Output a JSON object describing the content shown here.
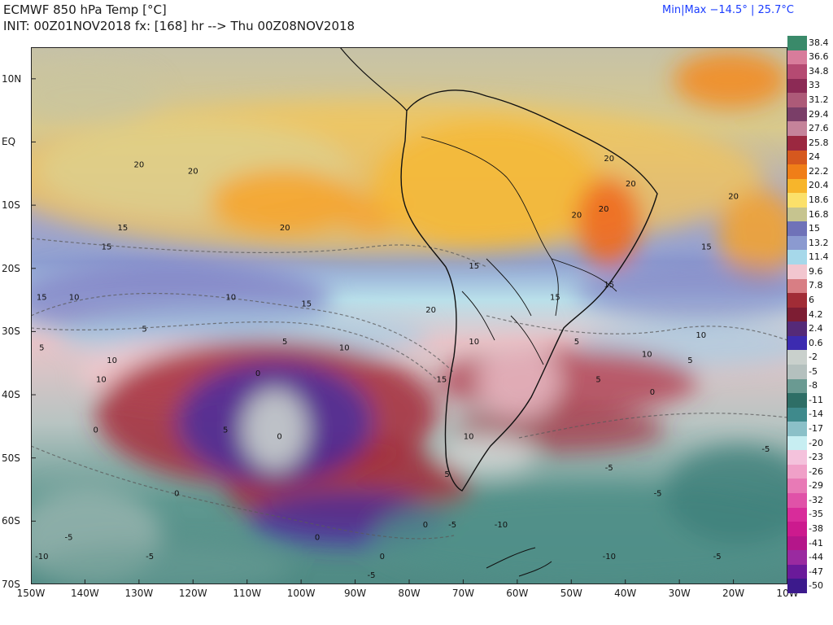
{
  "header": {
    "line1": "ECMWF 850 hPa Temp [°C]",
    "line2": "INIT: 00Z01NOV2018 fx: [168] hr --> Thu 00Z08NOV2018",
    "minmax": "Min|Max −14.5° | 25.7°C"
  },
  "map": {
    "lat_labels": [
      "10N",
      "EQ",
      "10S",
      "20S",
      "30S",
      "40S",
      "50S",
      "60S",
      "70S"
    ],
    "lon_labels": [
      "150W",
      "140W",
      "130W",
      "120W",
      "110W",
      "100W",
      "90W",
      "80W",
      "70W",
      "60W",
      "50W",
      "40W",
      "30W",
      "20W",
      "10W"
    ],
    "contour_labels": [
      {
        "text": "20",
        "lon": -130,
        "lat": -4
      },
      {
        "text": "20",
        "lon": -120,
        "lat": -5
      },
      {
        "text": "20",
        "lon": -103,
        "lat": -14
      },
      {
        "text": "20",
        "lon": -49,
        "lat": -12
      },
      {
        "text": "20",
        "lon": -43,
        "lat": -3
      },
      {
        "text": "20",
        "lon": -39,
        "lat": -7
      },
      {
        "text": "20",
        "lon": -44,
        "lat": -11
      },
      {
        "text": "20",
        "lon": -20,
        "lat": -9
      },
      {
        "text": "20",
        "lon": -76,
        "lat": -27
      },
      {
        "text": "15",
        "lon": -133,
        "lat": -14
      },
      {
        "text": "15",
        "lon": -136,
        "lat": -17
      },
      {
        "text": "15",
        "lon": -148,
        "lat": -25
      },
      {
        "text": "15",
        "lon": -99,
        "lat": -26
      },
      {
        "text": "15",
        "lon": -68,
        "lat": -20
      },
      {
        "text": "15",
        "lon": -53,
        "lat": -25
      },
      {
        "text": "15",
        "lon": -43,
        "lat": -23
      },
      {
        "text": "15",
        "lon": -25,
        "lat": -17
      },
      {
        "text": "15",
        "lon": -74,
        "lat": -38
      },
      {
        "text": "10",
        "lon": -142,
        "lat": -25
      },
      {
        "text": "10",
        "lon": -113,
        "lat": -25
      },
      {
        "text": "10",
        "lon": -135,
        "lat": -35
      },
      {
        "text": "10",
        "lon": -137,
        "lat": -38
      },
      {
        "text": "10",
        "lon": -92,
        "lat": -33
      },
      {
        "text": "10",
        "lon": -68,
        "lat": -32
      },
      {
        "text": "10",
        "lon": -36,
        "lat": -34
      },
      {
        "text": "10",
        "lon": -26,
        "lat": -31
      },
      {
        "text": "10",
        "lon": -69,
        "lat": -47
      },
      {
        "text": "5",
        "lon": -129,
        "lat": -30
      },
      {
        "text": "5",
        "lon": -148,
        "lat": -33
      },
      {
        "text": "5",
        "lon": -103,
        "lat": -32
      },
      {
        "text": "5",
        "lon": -114,
        "lat": -46
      },
      {
        "text": "5",
        "lon": -73,
        "lat": -53
      },
      {
        "text": "5",
        "lon": -49,
        "lat": -32
      },
      {
        "text": "5",
        "lon": -45,
        "lat": -38
      },
      {
        "text": "5",
        "lon": -28,
        "lat": -35
      },
      {
        "text": "0",
        "lon": -108,
        "lat": -37
      },
      {
        "text": "0",
        "lon": -138,
        "lat": -46
      },
      {
        "text": "0",
        "lon": -123,
        "lat": -56
      },
      {
        "text": "0",
        "lon": -104,
        "lat": -47
      },
      {
        "text": "0",
        "lon": -97,
        "lat": -63
      },
      {
        "text": "0",
        "lon": -77,
        "lat": -61
      },
      {
        "text": "0",
        "lon": -85,
        "lat": -66
      },
      {
        "text": "0",
        "lon": -35,
        "lat": -40
      },
      {
        "text": "-5",
        "lon": -143,
        "lat": -63
      },
      {
        "text": "-5",
        "lon": -128,
        "lat": -66
      },
      {
        "text": "-5",
        "lon": -72,
        "lat": -61
      },
      {
        "text": "-5",
        "lon": -43,
        "lat": -52
      },
      {
        "text": "-5",
        "lon": -34,
        "lat": -56
      },
      {
        "text": "-5",
        "lon": -14,
        "lat": -49
      },
      {
        "text": "-5",
        "lon": -23,
        "lat": -66
      },
      {
        "text": "-5",
        "lon": -87,
        "lat": -69
      },
      {
        "text": "-10",
        "lon": -148,
        "lat": -66
      },
      {
        "text": "-10",
        "lon": -63,
        "lat": -61
      },
      {
        "text": "-10",
        "lon": -43,
        "lat": -66
      }
    ]
  },
  "colorbar": {
    "labels": [
      "38.4",
      "36.6",
      "34.8",
      "33",
      "31.2",
      "29.4",
      "27.6",
      "25.8",
      "24",
      "22.2",
      "20.4",
      "18.6",
      "16.8",
      "15",
      "13.2",
      "11.4",
      "9.6",
      "7.8",
      "6",
      "4.2",
      "2.4",
      "0.6",
      "-2",
      "-5",
      "-8",
      "-11",
      "-14",
      "-17",
      "-20",
      "-23",
      "-26",
      "-29",
      "-32",
      "-35",
      "-38",
      "-41",
      "-44",
      "-47",
      "-50"
    ],
    "colors": [
      "#3a8a6a",
      "#d87c9b",
      "#b54a72",
      "#8c2a55",
      "#ad5a78",
      "#7a3e68",
      "#c5839a",
      "#9b2840",
      "#d6581e",
      "#f07e18",
      "#f7b52b",
      "#fbe06a",
      "#c6c48f",
      "#6f72b8",
      "#8b9ad0",
      "#a6d8ea",
      "#f2c6cf",
      "#d87e84",
      "#a12c36",
      "#7d1d33",
      "#552a78",
      "#3c2bb0",
      "#c9d0cc",
      "#b4c0be",
      "#6a9a92",
      "#2e6e66",
      "#3f8a8c",
      "#8bc0c8",
      "#c7eef2",
      "#f4c2dc",
      "#f0a0c8",
      "#e87ab6",
      "#e052a8",
      "#d82c9a",
      "#cc1a8e",
      "#b4168a",
      "#9a2aa0",
      "#6a1a9a",
      "#3c1a8c"
    ]
  }
}
